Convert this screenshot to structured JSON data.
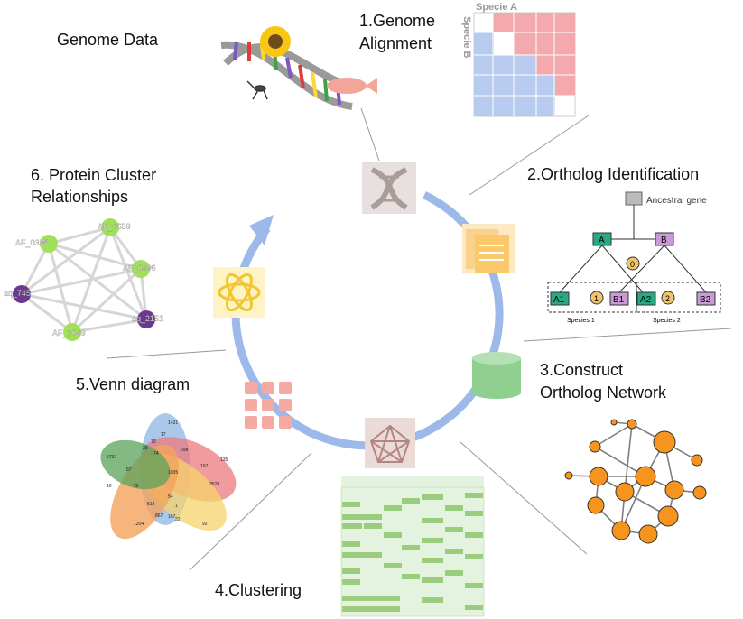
{
  "steps": {
    "genome_data": "Genome Data",
    "alignment_line1": "1.Genome",
    "alignment_line2": "Alignment",
    "ortholog": "2.Ortholog Identification",
    "construct_line1": "3.Construct",
    "construct_line2": "Ortholog Network",
    "clustering": "4.Clustering",
    "venn": "5.Venn diagram",
    "protein_line1": "6. Protein Cluster",
    "protein_line2": "Relationships"
  },
  "alignment": {
    "species_a": "Specie A",
    "species_b": "Specie B"
  },
  "ortholog_tree": {
    "ancestral": "Ancestral gene",
    "node_a": "A",
    "node_b": "B",
    "event_0_top": "0",
    "a1": "A1",
    "event_1": "1",
    "b1": "B1",
    "a2": "A2",
    "event_2": "2",
    "b2": "B2",
    "species1": "Species 1",
    "species2": "Species 2"
  },
  "protein_nodes": {
    "n1": "AF_0338",
    "n2": "AF_0659",
    "n3": "AF_0996",
    "n4": "aq_745",
    "n5": "aq_2151",
    "n6": "AF_1049"
  },
  "venn_numbers": [
    "1431",
    "17",
    "73",
    "39",
    "74",
    "298",
    "167",
    "135",
    "5737",
    "87",
    "1035",
    "3528",
    "10",
    "22",
    "513",
    "54",
    "1",
    "167",
    "1204",
    "867",
    "32",
    "92"
  ],
  "colors": {
    "cycle": "#9db9ea",
    "dna_icon": "#b8aaa6",
    "doc_icon": "#fbd28c",
    "db_icon": "#8fcf8f",
    "network_icon": "#b58583",
    "grid_icon": "#f4aaa3",
    "atom_icon": "#f3d650",
    "pink": "#f4a9ad",
    "blue": "#b7cbef",
    "green_node": "#a3e05a",
    "purple_node": "#6b3a8f",
    "orange_node": "#f7941d"
  }
}
